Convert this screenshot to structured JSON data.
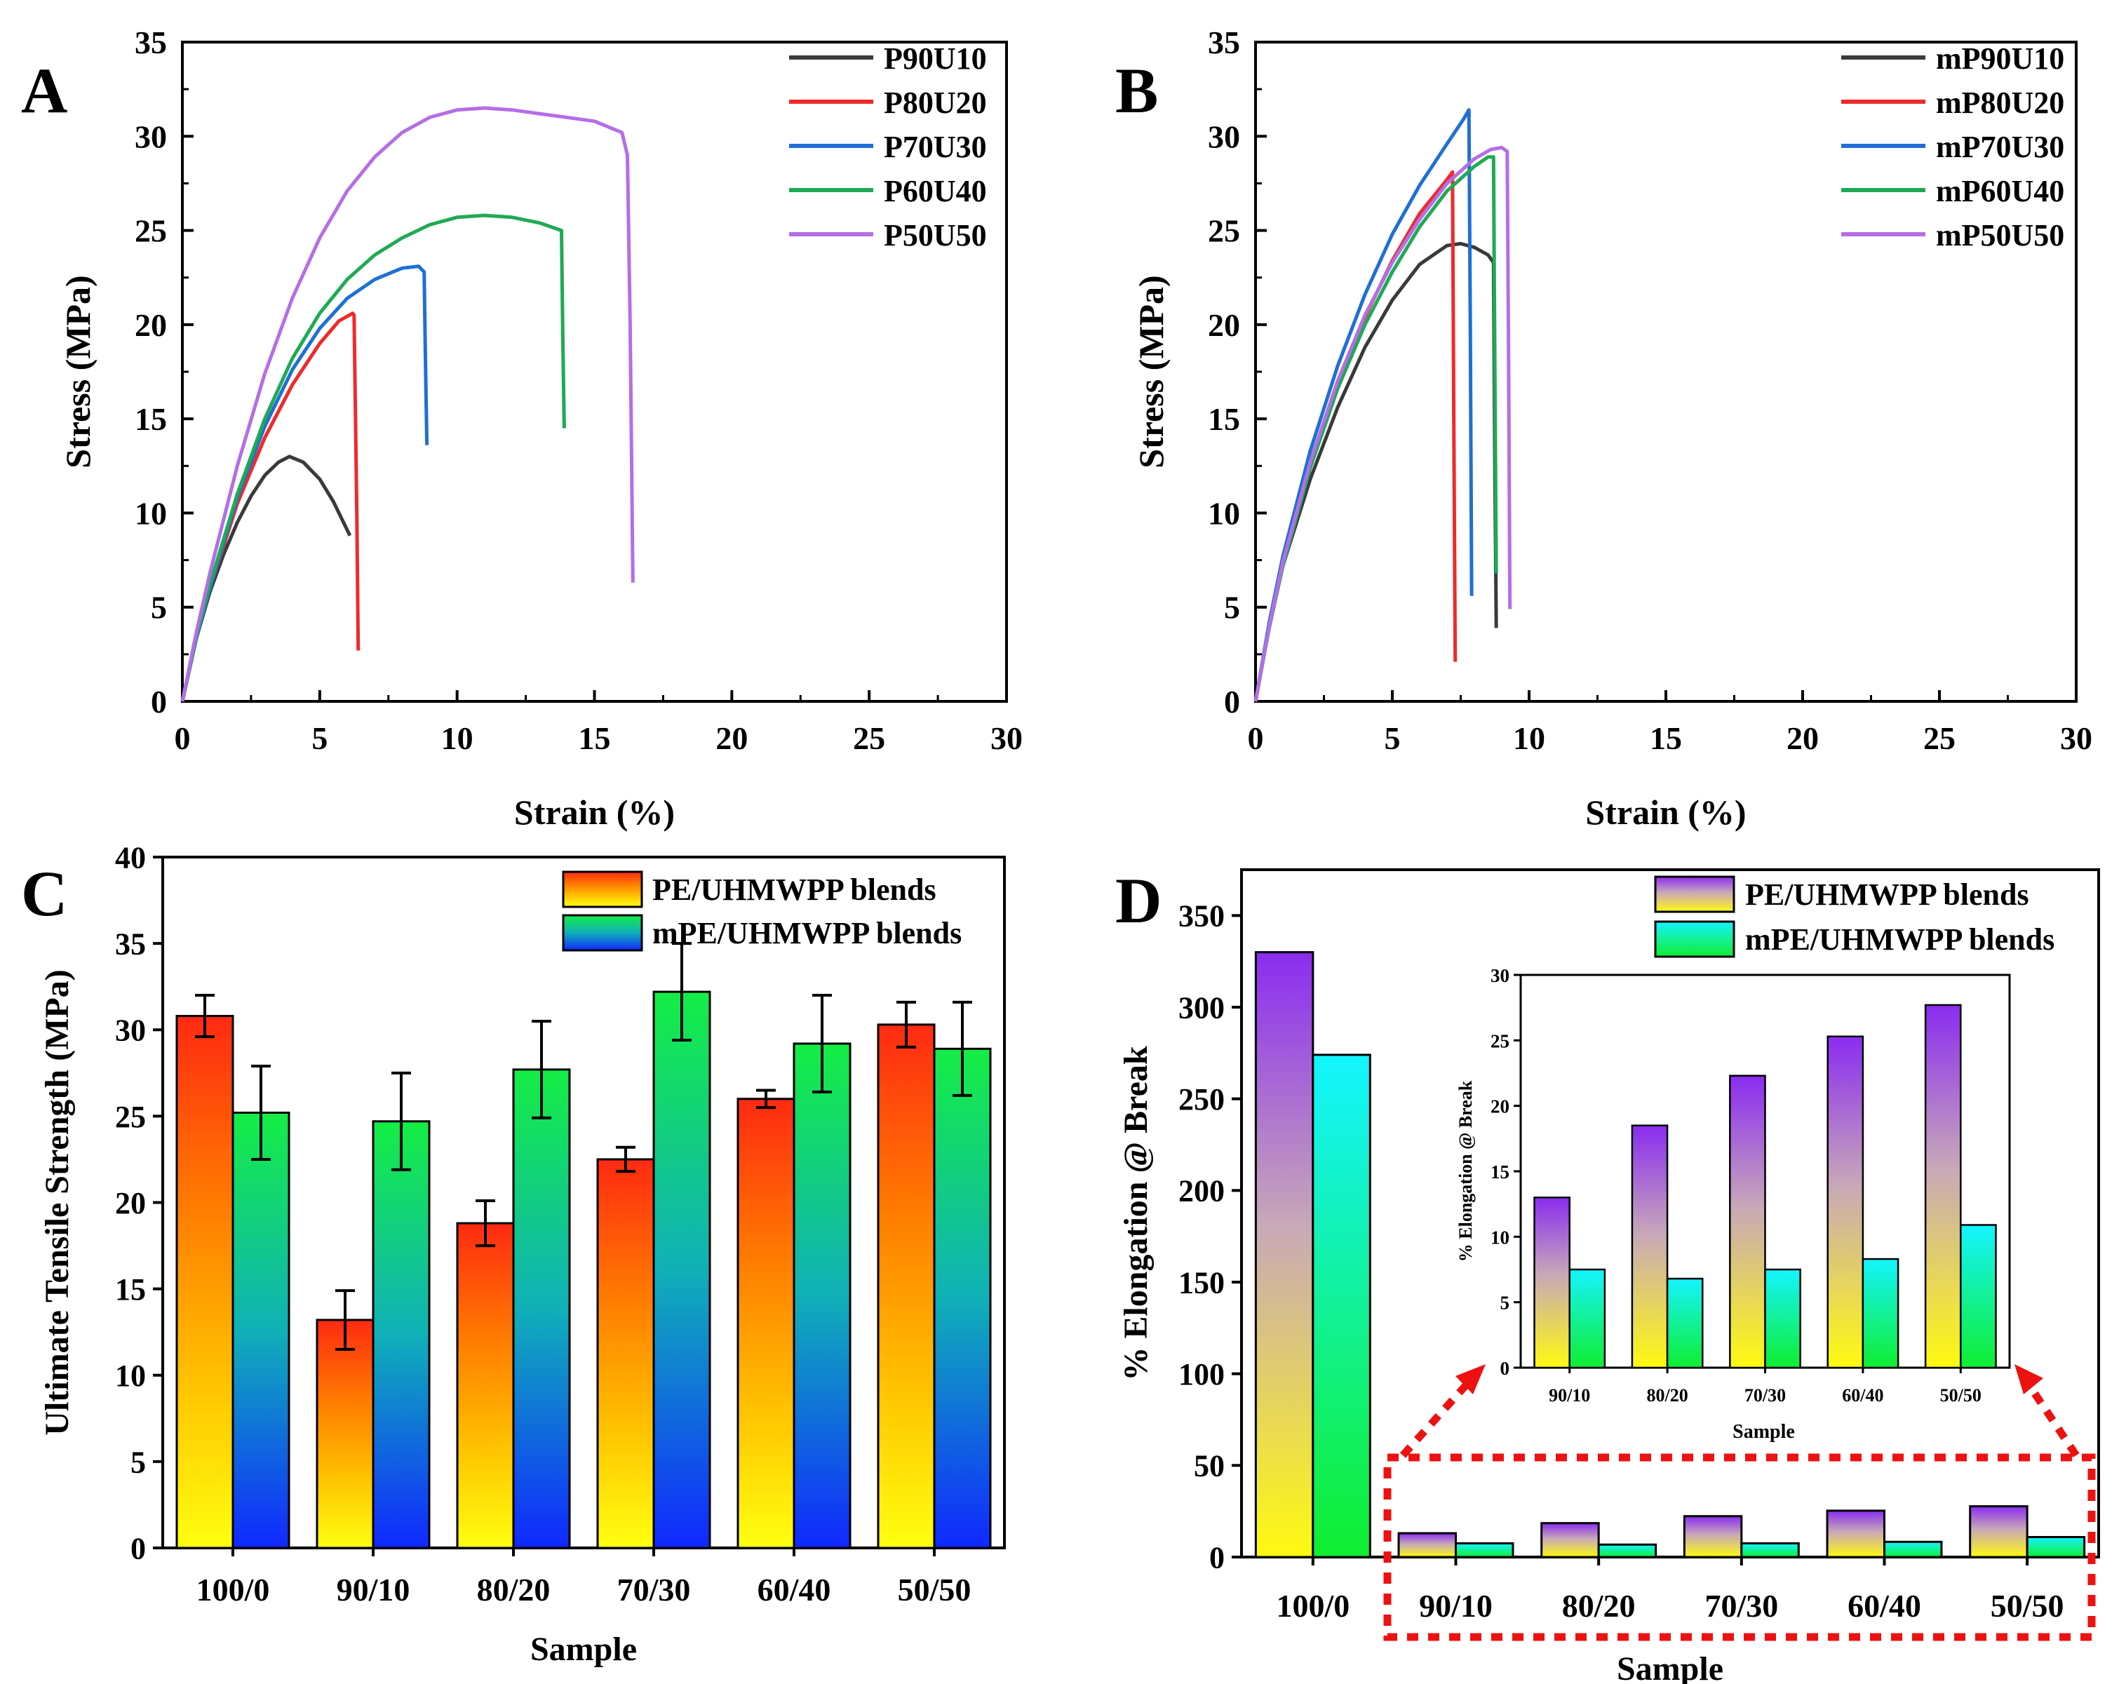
{
  "colors": {
    "P90": "#3a3a3a",
    "P80": "#ee2a2a",
    "P70": "#1f6fd6",
    "P60": "#1faa55",
    "P50": "#b56ee6",
    "red_dash": "#ee1111"
  },
  "chart_data": [
    {
      "panel": "A",
      "type": "line",
      "xlabel": "Strain (%)",
      "ylabel": "Stress (MPa)",
      "xlim": [
        0,
        30
      ],
      "ylim": [
        0,
        35
      ],
      "xticks": [
        "0",
        "5",
        "10",
        "15",
        "20",
        "25",
        "30"
      ],
      "yticks": [
        "0",
        "5",
        "10",
        "15",
        "20",
        "25",
        "30",
        "35"
      ],
      "series": [
        {
          "name": "P90U10",
          "color": "#3a3a3a",
          "x": [
            0,
            0.5,
            1,
            1.5,
            2,
            2.5,
            3,
            3.5,
            3.9,
            4.4,
            5,
            5.5,
            6.1
          ],
          "y": [
            0,
            3.3,
            5.8,
            7.8,
            9.5,
            10.9,
            12,
            12.7,
            13.0,
            12.7,
            11.8,
            10.6,
            8.8
          ]
        },
        {
          "name": "P80U20",
          "color": "#ee2a2a",
          "x": [
            0,
            0.5,
            1,
            2,
            3,
            4,
            5,
            5.7,
            6.2,
            6.25,
            6.35,
            6.4
          ],
          "y": [
            0,
            3.3,
            6,
            10.5,
            14,
            16.8,
            19,
            20.2,
            20.6,
            20.5,
            10,
            2.7
          ]
        },
        {
          "name": "P70U30",
          "color": "#1f6fd6",
          "x": [
            0,
            0.5,
            1,
            2,
            3,
            4,
            5,
            6,
            7,
            8,
            8.6,
            8.8,
            8.85,
            8.9
          ],
          "y": [
            0,
            3.3,
            6,
            10.8,
            14.6,
            17.6,
            19.8,
            21.4,
            22.4,
            23,
            23.1,
            22.8,
            18,
            13.6
          ]
        },
        {
          "name": "P60U40",
          "color": "#1faa55",
          "x": [
            0,
            0.5,
            1,
            2,
            3,
            4,
            5,
            6,
            7,
            8,
            9,
            10,
            11,
            12,
            13,
            13.8,
            13.85,
            13.9
          ],
          "y": [
            0,
            3.4,
            6.2,
            11,
            15,
            18.2,
            20.6,
            22.4,
            23.7,
            24.6,
            25.3,
            25.7,
            25.8,
            25.7,
            25.4,
            25,
            19,
            14.5
          ]
        },
        {
          "name": "P50U50",
          "color": "#b56ee6",
          "x": [
            0,
            0.5,
            1,
            2,
            3,
            4,
            5,
            6,
            7,
            8,
            9,
            10,
            11,
            12,
            13,
            14,
            15,
            16,
            16.2,
            16.3,
            16.4
          ],
          "y": [
            0,
            3.6,
            6.8,
            12.5,
            17.4,
            21.4,
            24.6,
            27.1,
            28.9,
            30.2,
            31,
            31.4,
            31.5,
            31.4,
            31.2,
            31,
            30.8,
            30.2,
            29,
            20,
            6.3
          ]
        }
      ]
    },
    {
      "panel": "B",
      "type": "line",
      "xlabel": "Strain (%)",
      "ylabel": "Stress (MPa)",
      "xlim": [
        0,
        30
      ],
      "ylim": [
        0,
        35
      ],
      "xticks": [
        "0",
        "5",
        "10",
        "15",
        "20",
        "25",
        "30"
      ],
      "yticks": [
        "0",
        "5",
        "10",
        "15",
        "20",
        "25",
        "30",
        "35"
      ],
      "series": [
        {
          "name": "mP90U10",
          "color": "#3a3a3a",
          "x": [
            0,
            0.5,
            1,
            2,
            3,
            4,
            5,
            6,
            7,
            7.5,
            8,
            8.5,
            8.7,
            8.75,
            8.8
          ],
          "y": [
            0,
            4,
            7.2,
            11.8,
            15.6,
            18.8,
            21.3,
            23.2,
            24.2,
            24.3,
            24.1,
            23.7,
            23.3,
            12,
            3.9
          ]
        },
        {
          "name": "mP80U20",
          "color": "#ee2a2a",
          "x": [
            0,
            0.5,
            1,
            2,
            3,
            4,
            5,
            6,
            7,
            7.2,
            7.25,
            7.3
          ],
          "y": [
            0,
            4,
            7.4,
            12.6,
            16.9,
            20.4,
            23.4,
            25.9,
            27.7,
            28.1,
            14,
            2.1
          ]
        },
        {
          "name": "mP70U30",
          "color": "#1f6fd6",
          "x": [
            0,
            0.5,
            1,
            2,
            3,
            4,
            5,
            6,
            7,
            7.6,
            7.8,
            7.85,
            7.9
          ],
          "y": [
            0,
            4.2,
            7.7,
            13.3,
            17.8,
            21.6,
            24.8,
            27.4,
            29.6,
            30.9,
            31.4,
            20,
            5.6
          ]
        },
        {
          "name": "mP60U40",
          "color": "#1faa55",
          "x": [
            0,
            0.5,
            1,
            2,
            3,
            4,
            5,
            6,
            7,
            8,
            8.5,
            8.7,
            8.75,
            8.8
          ],
          "y": [
            0,
            3.9,
            7.2,
            12.4,
            16.6,
            20,
            22.8,
            25.2,
            27.1,
            28.4,
            28.9,
            28.9,
            17,
            6.8
          ]
        },
        {
          "name": "mP50U50",
          "color": "#b56ee6",
          "x": [
            0,
            0.5,
            1,
            2,
            3,
            4,
            5,
            6,
            7,
            8,
            8.6,
            9,
            9.2,
            9.25,
            9.3
          ],
          "y": [
            0,
            4,
            7.4,
            12.7,
            17,
            20.5,
            23.3,
            25.6,
            27.5,
            28.8,
            29.3,
            29.4,
            29.2,
            18,
            4.9
          ]
        }
      ],
      "legend": [
        "mP90U10",
        "mP80U20",
        "mP70U30",
        "mP60U40",
        "mP50U50"
      ]
    },
    {
      "panel": "C",
      "type": "bar",
      "xlabel": "Sample",
      "ylabel": "Ultimate Tensile Strength (MPa)",
      "ylim": [
        0,
        40
      ],
      "yticks": [
        "0",
        "5",
        "10",
        "15",
        "20",
        "25",
        "30",
        "35",
        "40"
      ],
      "categories": [
        "100/0",
        "90/10",
        "80/20",
        "70/30",
        "60/40",
        "50/50"
      ],
      "series": [
        {
          "name": "PE/UHMWPP blends",
          "values": [
            30.8,
            13.2,
            18.8,
            22.5,
            26.0,
            30.3
          ],
          "errors": [
            1.2,
            1.7,
            1.3,
            0.7,
            0.5,
            1.3
          ]
        },
        {
          "name": "mPE/UHMWPP blends",
          "values": [
            25.2,
            24.7,
            27.7,
            32.2,
            29.2,
            28.9
          ],
          "errors": [
            2.7,
            2.8,
            2.8,
            2.8,
            2.8,
            2.7
          ]
        }
      ]
    },
    {
      "panel": "D",
      "type": "bar",
      "xlabel": "Sample",
      "ylabel": "% Elongation @ Break",
      "ylim": [
        0,
        375
      ],
      "yticks": [
        "0",
        "50",
        "100",
        "150",
        "200",
        "250",
        "300",
        "350"
      ],
      "categories": [
        "100/0",
        "90/10",
        "80/20",
        "70/30",
        "60/40",
        "50/50"
      ],
      "series": [
        {
          "name": "PE/UHMWPP blends",
          "values": [
            330,
            13.0,
            18.5,
            22.3,
            25.3,
            27.7
          ]
        },
        {
          "name": "mPE/UHMWPP blends",
          "values": [
            274,
            7.5,
            6.8,
            7.5,
            8.3,
            10.9
          ]
        }
      ],
      "inset": {
        "xlabel": "Sample",
        "ylabel": "% Elongation @ Break",
        "ylim": [
          0,
          30
        ],
        "yticks": [
          "0",
          "5",
          "10",
          "15",
          "20",
          "25",
          "30"
        ],
        "categories": [
          "90/10",
          "80/20",
          "70/30",
          "60/40",
          "50/50"
        ],
        "series": [
          {
            "name": "PE/UHMWPP blends",
            "values": [
              13.0,
              18.5,
              22.3,
              25.3,
              27.7
            ]
          },
          {
            "name": "mPE/UHMWPP blends",
            "values": [
              7.5,
              6.8,
              7.5,
              8.3,
              10.9
            ]
          }
        ]
      }
    }
  ]
}
